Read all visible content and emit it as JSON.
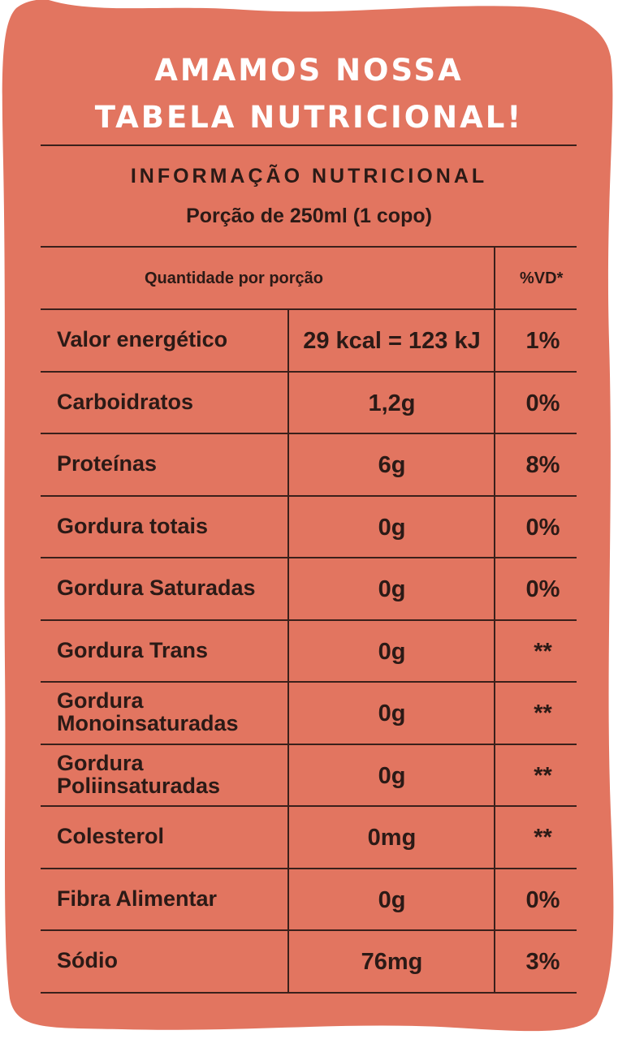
{
  "colors": {
    "background": "#e27560",
    "ink": "#2b1a16",
    "headline": "#ffffff"
  },
  "headline": {
    "line1": "AMAMOS NOSSA",
    "line2": "TABELA NUTRICIONAL!"
  },
  "info": {
    "title": "INFORMAÇÃO NUTRICIONAL",
    "portion": "Porção de 250ml (1 copo)"
  },
  "table": {
    "header_quantity": "Quantidade por porção",
    "header_vd": "%VD*",
    "rows": [
      {
        "label": "Valor energético",
        "amount": "29 kcal = 123 kJ",
        "vd": "1%"
      },
      {
        "label": "Carboidratos",
        "amount": "1,2g",
        "vd": "0%"
      },
      {
        "label": "Proteínas",
        "amount": "6g",
        "vd": "8%"
      },
      {
        "label": "Gordura totais",
        "amount": "0g",
        "vd": "0%"
      },
      {
        "label": "Gordura Saturadas",
        "amount": "0g",
        "vd": "0%"
      },
      {
        "label": "Gordura Trans",
        "amount": "0g",
        "vd": "**"
      },
      {
        "label": "Gordura Monoinsaturadas",
        "amount": "0g",
        "vd": "**"
      },
      {
        "label": "Gordura Poliinsaturadas",
        "amount": "0g",
        "vd": "**"
      },
      {
        "label": "Colesterol",
        "amount": "0mg",
        "vd": "**"
      },
      {
        "label": "Fibra Alimentar",
        "amount": "0g",
        "vd": "0%"
      },
      {
        "label": "Sódio",
        "amount": "76mg",
        "vd": "3%"
      }
    ]
  }
}
